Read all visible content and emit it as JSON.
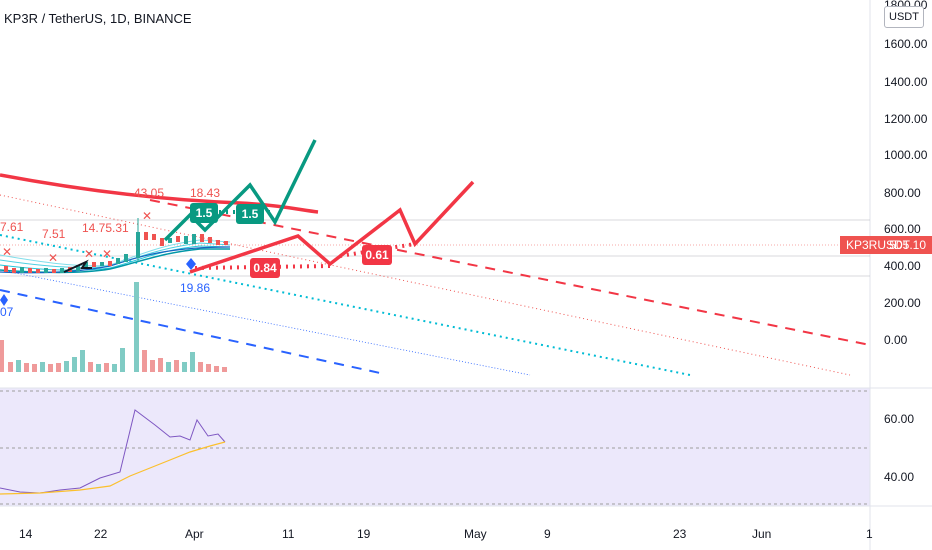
{
  "header": {
    "symbol_title": "KP3R / TetherUS, 1D, BINANCE",
    "currency_button": "USDT"
  },
  "price_scale": {
    "labels": [
      "1800.00",
      "1600.00",
      "1400.00",
      "1200.00",
      "1000.00",
      "800.00",
      "600.00",
      "400.00",
      "200.00",
      "0.00"
    ],
    "current_tag_symbol": "KP3RUSDT",
    "current_tag_price": "505.10",
    "tag_color": "#ef5350"
  },
  "indicator_scale": {
    "labels": [
      "60.00",
      "40.00"
    ],
    "panel_color": "#ece8fb"
  },
  "time_axis": {
    "labels": [
      "14",
      "22",
      "Apr",
      "11",
      "19",
      "May",
      "9",
      "23",
      "Jun",
      "1"
    ]
  },
  "annotations": {
    "red_labels": [
      "7.61",
      "7.51",
      "14.75.31",
      "43.05",
      "18.43"
    ],
    "blue_labels": [
      "07",
      "19.86"
    ],
    "green_badges": [
      "1.5",
      "1.5"
    ],
    "red_badges": [
      "0.84",
      "0.61"
    ]
  },
  "colors": {
    "up": "#26a69a",
    "down": "#ef5350",
    "projection_green": "#089981",
    "projection_red": "#f23645",
    "dashed_blue": "#2962ff",
    "dotted_teal": "#00bcd4",
    "rsi_line": "#7e57c2",
    "rsi_ma": "#fbc02d"
  }
}
